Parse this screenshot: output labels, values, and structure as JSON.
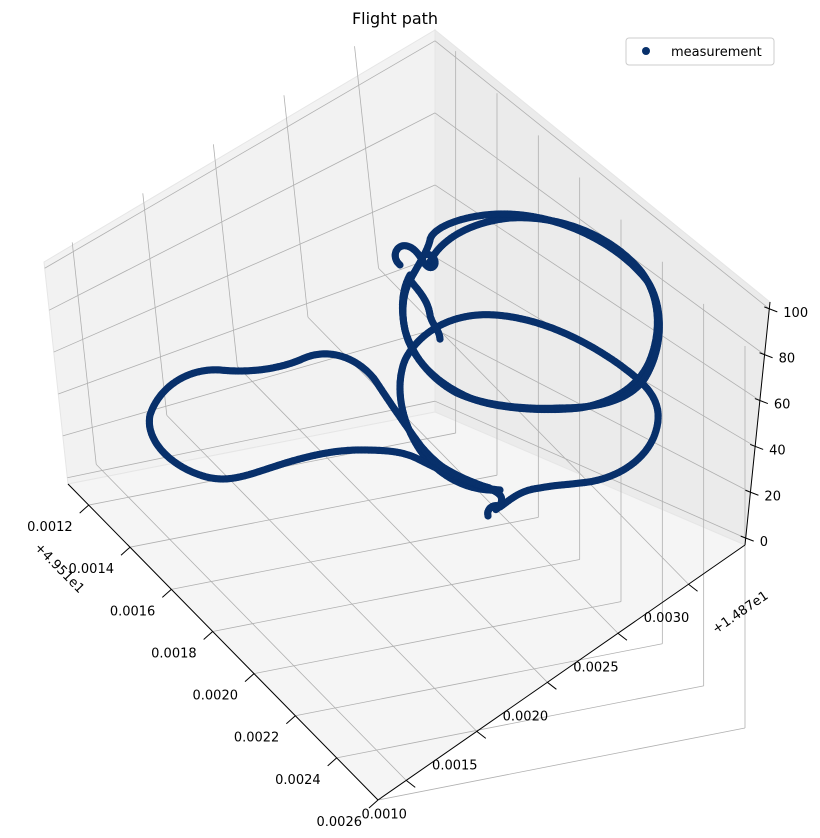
{
  "chart_data": {
    "type": "scatter",
    "projection": "3d",
    "title": "Flight path",
    "series": [
      {
        "name": "measurement",
        "color": "#08306b",
        "marker": "circle"
      }
    ],
    "legend": {
      "location": "top-right",
      "entries": [
        "measurement"
      ]
    },
    "grid": true,
    "x_axis": {
      "offset_text": "+4.951e1",
      "tick_labels": [
        "0.0012",
        "0.0014",
        "0.0016",
        "0.0018",
        "0.0020",
        "0.0022",
        "0.0024",
        "0.0026"
      ],
      "ticks": [
        0.0012,
        0.0014,
        0.0016,
        0.0018,
        0.002,
        0.0022,
        0.0024,
        0.0026
      ],
      "range": [
        0.0011,
        0.0026
      ]
    },
    "y_axis": {
      "offset_text": "+1.487e1",
      "tick_labels": [
        "0.0010",
        "0.0015",
        "0.0020",
        "0.0025",
        "0.0030"
      ],
      "ticks": [
        0.001,
        0.0015,
        0.002,
        0.0025,
        0.003
      ],
      "range": [
        0.0008,
        0.0034
      ]
    },
    "z_axis": {
      "tick_labels": [
        "0",
        "20",
        "40",
        "60",
        "80",
        "100"
      ],
      "ticks": [
        0,
        20,
        40,
        60,
        80,
        100
      ],
      "range": [
        -3,
        103
      ]
    }
  }
}
